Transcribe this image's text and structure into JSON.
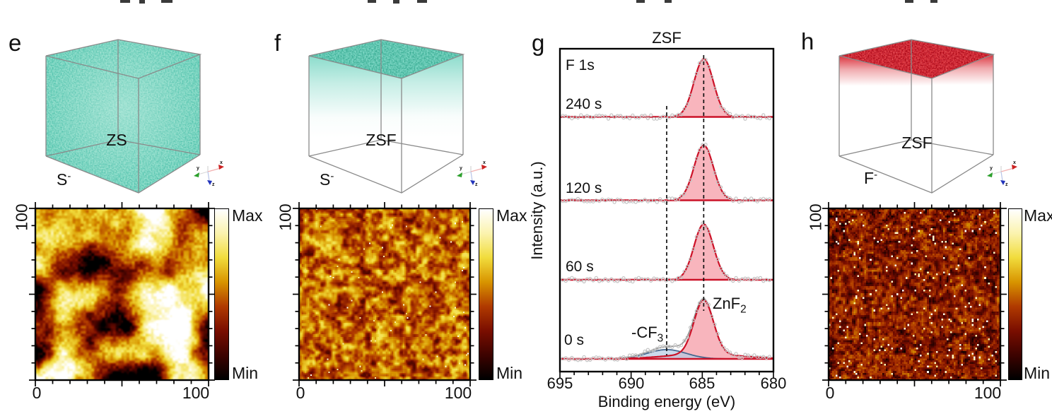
{
  "figure": {
    "colorbar_gradient_top_to_bottom": [
      "#ffffff",
      "#fbf3ae",
      "#f1dc3c",
      "#d89400",
      "#b03a00",
      "#7a0e00",
      "#3d0300",
      "#000000"
    ],
    "colors": {
      "teal": "#7fd8c6",
      "red": "#d5101c",
      "peak_fill": "#f6a3ac",
      "peak_stroke": "#cc1228",
      "cf3_fill": "#b5cbe4",
      "cf3_stroke": "#46688f",
      "envelope": "#909090",
      "scatter": "#c4c4c4",
      "wireframe": "#8a8a8a"
    }
  },
  "panels": {
    "e": {
      "letter": "e",
      "cube": {
        "material": "ZS",
        "ion": {
          "base": "S",
          "charge": "-"
        },
        "fill_mode": "full volume",
        "point_color": "#7fd8c6"
      },
      "map": {
        "y_max_label": "100",
        "x_min_label": "0",
        "x_max_label": "100",
        "colorbar_max": "Max",
        "colorbar_min": "Min",
        "noise": {
          "seed": 11,
          "res": 150,
          "octaves": [
            [
              6,
              1
            ],
            [
              13,
              0.3
            ],
            [
              64,
              0.16
            ]
          ],
          "contrast": 1.7,
          "lo": 0,
          "hi": 1,
          "smooth": true,
          "sparkle": 0
        }
      }
    },
    "f": {
      "letter": "f",
      "cube": {
        "material": "ZSF",
        "ion": {
          "base": "S",
          "charge": "-"
        },
        "fill_mode": "top surface",
        "point_color": "#7fd8c6"
      },
      "map": {
        "y_max_label": "100",
        "x_min_label": "0",
        "x_max_label": "100",
        "colorbar_max": "Max",
        "colorbar_min": "Min",
        "noise": {
          "seed": 29,
          "res": 122,
          "octaves": [
            [
              30,
              1
            ],
            [
              11,
              0.35
            ],
            [
              61,
              0.55
            ]
          ],
          "contrast": 1.25,
          "lo": 0.16,
          "hi": 0.74,
          "smooth": false,
          "sparkle": 0.004
        }
      }
    },
    "g": {
      "letter": "g"
    },
    "h": {
      "letter": "h",
      "cube": {
        "material": "ZSF",
        "ion": {
          "base": "F",
          "charge": "-"
        },
        "fill_mode": "top surface",
        "point_color": "#d5101c"
      },
      "map": {
        "y_max_label": "100",
        "x_min_label": "0",
        "x_max_label": "100",
        "colorbar_max": "Max",
        "colorbar_min": "Min",
        "noise": {
          "seed": 47,
          "res": 96,
          "octaves": [
            [
              48,
              1
            ],
            [
              15,
              0.25
            ],
            [
              96,
              0.5
            ]
          ],
          "contrast": 1.15,
          "lo": 0.02,
          "hi": 0.52,
          "smooth": false,
          "sparkle": 0.02
        }
      }
    }
  },
  "chart_data": [
    {
      "panel": "e",
      "type": "heatmap",
      "sample": "ZS",
      "ion": "S-",
      "x_ticks": [
        0,
        100
      ],
      "y_ticks": [
        0,
        100
      ],
      "colorbar": {
        "top": "Max",
        "bottom": "Min"
      },
      "pattern": "large bright yellow domains (~15-25 units) on dark red background"
    },
    {
      "panel": "f",
      "type": "heatmap",
      "sample": "ZSF",
      "ion": "S-",
      "x_ticks": [
        0,
        100
      ],
      "y_ticks": [
        0,
        100
      ],
      "colorbar": {
        "top": "Max",
        "bottom": "Min"
      },
      "pattern": "fine-grained red-orange speckle with small dark patches, homogeneous"
    },
    {
      "panel": "g",
      "type": "line",
      "title": "ZSF",
      "core_level": "F 1s",
      "xlabel": "Binding energy (eV)",
      "ylabel": "Intensity (a.u.)",
      "x_range": [
        695,
        680
      ],
      "x_ticks": [
        695,
        690,
        685,
        680
      ],
      "guide_lines_eV": [
        687.5,
        684.9
      ],
      "series": [
        {
          "name": "240 s",
          "peaks": [
            {
              "assignment": "ZnF2",
              "center_eV": 684.9,
              "fwhm_eV": 1.6,
              "rel_intensity": 1.0
            }
          ]
        },
        {
          "name": "120 s",
          "peaks": [
            {
              "assignment": "ZnF2",
              "center_eV": 684.9,
              "fwhm_eV": 1.6,
              "rel_intensity": 0.95
            }
          ]
        },
        {
          "name": "60 s",
          "peaks": [
            {
              "assignment": "ZnF2",
              "center_eV": 684.9,
              "fwhm_eV": 1.6,
              "rel_intensity": 0.96
            }
          ]
        },
        {
          "name": "0 s",
          "peaks": [
            {
              "assignment": "ZnF2",
              "center_eV": 684.9,
              "fwhm_eV": 1.6,
              "rel_intensity": 0.93
            },
            {
              "assignment": "-CF3",
              "center_eV": 687.5,
              "fwhm_eV": 3.2,
              "rel_intensity": 0.16
            }
          ]
        }
      ],
      "annotations": {
        "znf2": {
          "text": "ZnF",
          "sub": "2"
        },
        "cf3": {
          "text": "-CF",
          "sub": "3"
        }
      }
    },
    {
      "panel": "h",
      "type": "heatmap",
      "sample": "ZSF",
      "ion": "F-",
      "x_ticks": [
        0,
        100
      ],
      "y_ticks": [
        0,
        100
      ],
      "colorbar": {
        "top": "Max",
        "bottom": "Min"
      },
      "pattern": "dark red random speckle with sparse bright yellow pixels"
    }
  ]
}
